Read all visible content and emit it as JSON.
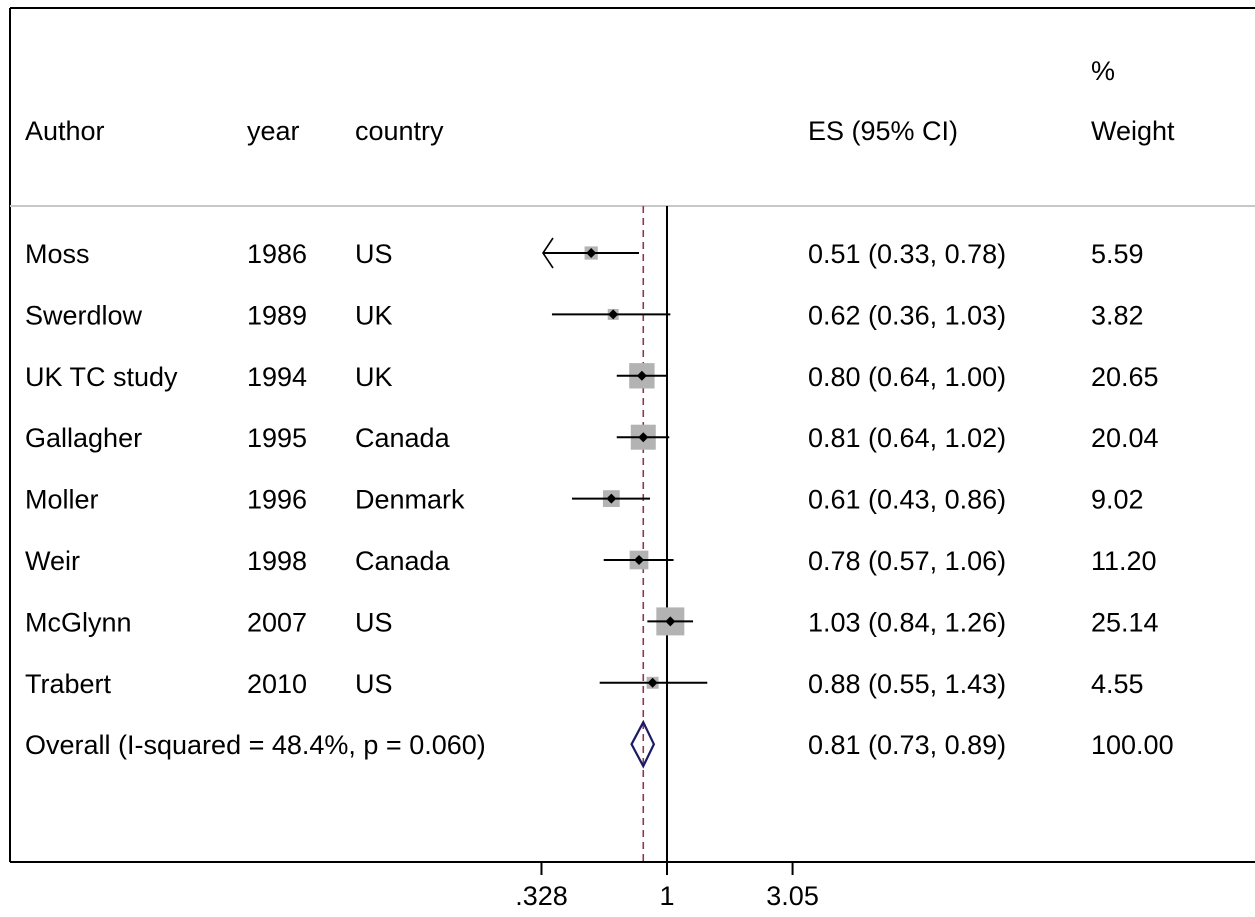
{
  "chart_data": {
    "type": "forest",
    "scale": "log",
    "columns": {
      "author": "Author",
      "year": "year",
      "country": "country",
      "es": "ES (95% CI)",
      "weight_line1": "%",
      "weight_line2": "Weight"
    },
    "studies": [
      {
        "author": "Moss",
        "year": "1986",
        "country": "US",
        "es": 0.51,
        "lo": 0.33,
        "hi": 0.78,
        "es_text": "0.51 (0.33, 0.78)",
        "weight": "5.59",
        "weight_value": 5.59,
        "lo_clipped": true
      },
      {
        "author": "Swerdlow",
        "year": "1989",
        "country": "UK",
        "es": 0.62,
        "lo": 0.36,
        "hi": 1.03,
        "es_text": "0.62 (0.36, 1.03)",
        "weight": "3.82",
        "weight_value": 3.82
      },
      {
        "author": "UK TC study",
        "year": "1994",
        "country": "UK",
        "es": 0.8,
        "lo": 0.64,
        "hi": 1.0,
        "es_text": "0.80 (0.64, 1.00)",
        "weight": "20.65",
        "weight_value": 20.65
      },
      {
        "author": "Gallagher",
        "year": "1995",
        "country": "Canada",
        "es": 0.81,
        "lo": 0.64,
        "hi": 1.02,
        "es_text": "0.81 (0.64, 1.02)",
        "weight": "20.04",
        "weight_value": 20.04
      },
      {
        "author": "Moller",
        "year": "1996",
        "country": "Denmark",
        "es": 0.61,
        "lo": 0.43,
        "hi": 0.86,
        "es_text": "0.61 (0.43, 0.86)",
        "weight": "9.02",
        "weight_value": 9.02
      },
      {
        "author": "Weir",
        "year": "1998",
        "country": "Canada",
        "es": 0.78,
        "lo": 0.57,
        "hi": 1.06,
        "es_text": "0.78 (0.57, 1.06)",
        "weight": "11.20",
        "weight_value": 11.2
      },
      {
        "author": "McGlynn",
        "year": "2007",
        "country": "US",
        "es": 1.03,
        "lo": 0.84,
        "hi": 1.26,
        "es_text": "1.03 (0.84, 1.26)",
        "weight": "25.14",
        "weight_value": 25.14
      },
      {
        "author": "Trabert",
        "year": "2010",
        "country": "US",
        "es": 0.88,
        "lo": 0.55,
        "hi": 1.43,
        "es_text": "0.88 (0.55, 1.43)",
        "weight": "4.55",
        "weight_value": 4.55
      }
    ],
    "overall": {
      "label": "Overall  (I-squared = 48.4%, p = 0.060)",
      "es": 0.81,
      "lo": 0.73,
      "hi": 0.89,
      "es_text": "0.81 (0.73, 0.89)",
      "weight": "100.00"
    },
    "null_line": 1,
    "ticks": [
      {
        "value": 0.328,
        "label": ".328"
      },
      {
        "value": 1,
        "label": "1"
      },
      {
        "value": 3.05,
        "label": "3.05"
      }
    ],
    "colors": {
      "box": "#b3b3b3",
      "diamond": "#1a1a66",
      "overall_line": "#8b3a4a",
      "line": "#000000",
      "divider": "#c8c8c8"
    }
  }
}
